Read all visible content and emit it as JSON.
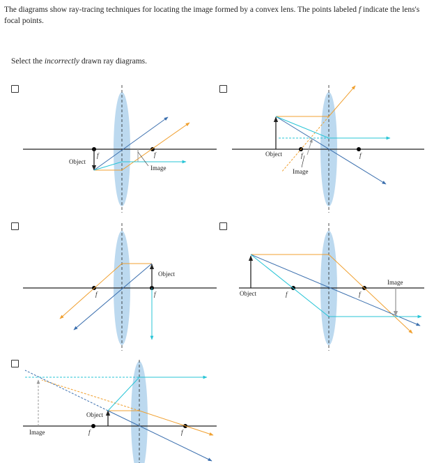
{
  "question": {
    "prompt_before_f": "The diagrams show ray-tracing techniques for locating the image formed by a convex lens. The points labeled ",
    "focal_symbol": "f",
    "prompt_after_f": " indicate the lens's focal points.",
    "instruction_before": "Select the ",
    "instruction_emphasis": "incorrectly",
    "instruction_after": " drawn ray diagrams."
  },
  "labels": {
    "object": "Object",
    "image": "Image",
    "focal": "f"
  },
  "colors": {
    "lens_fill": "#bcd9ef",
    "axis": "#222222",
    "ray_orange": "#f0a030",
    "ray_blue": "#3b6fae",
    "ray_cyan": "#27c4d6",
    "image_arrow": "#999999"
  },
  "options": [
    {
      "id": "option-1",
      "checked": false
    },
    {
      "id": "option-2",
      "checked": false
    },
    {
      "id": "option-3",
      "checked": false
    },
    {
      "id": "option-4",
      "checked": false
    },
    {
      "id": "option-5",
      "checked": false
    }
  ]
}
